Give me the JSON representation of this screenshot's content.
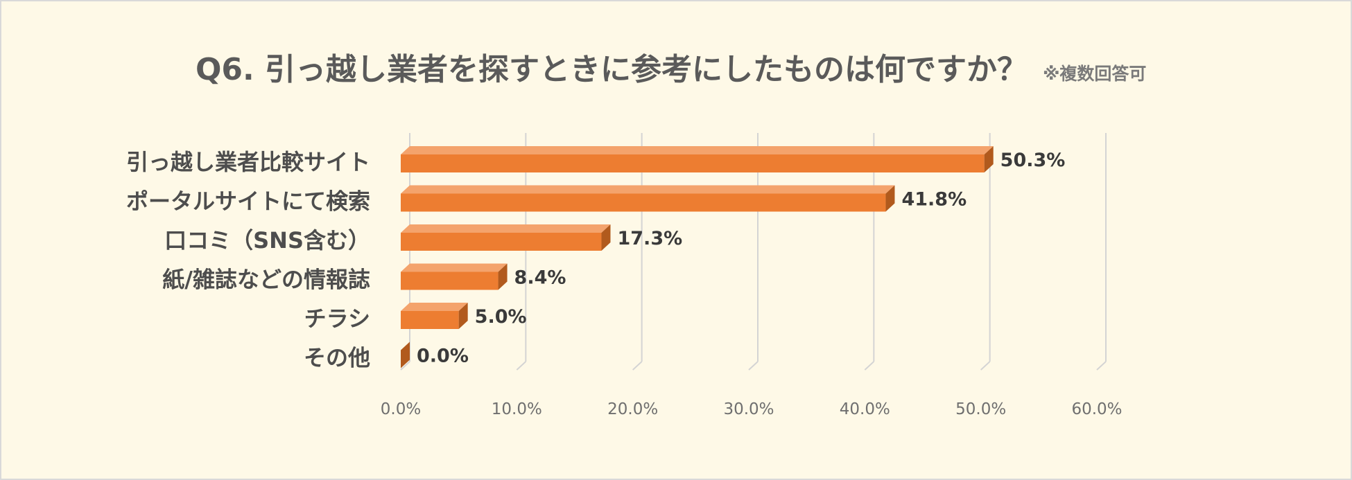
{
  "chart_data": {
    "type": "bar",
    "orientation": "horizontal",
    "title": "Q6. 引っ越し業者を探すときに参考にしたものは何ですか？",
    "subtitle": "※複数回答可",
    "categories": [
      "引っ越し業者比較サイト",
      "ポータルサイトにて検索",
      "口コミ（SNS含む）",
      "紙/雑誌などの情報誌",
      "チラシ",
      "その他"
    ],
    "values": [
      50.3,
      41.8,
      17.3,
      8.4,
      5.0,
      0.0
    ],
    "value_labels": [
      "50.3%",
      "41.8%",
      "17.3%",
      "8.4%",
      "5.0%",
      "0.0%"
    ],
    "xlim": [
      0,
      60
    ],
    "x_ticks": [
      "0.0%",
      "10.0%",
      "20.0%",
      "30.0%",
      "40.0%",
      "50.0%",
      "60.0%"
    ],
    "grid": true,
    "legend": "none",
    "colors": {
      "bar_front": "#ed7d31",
      "bar_top": "#f4a36c",
      "bar_side": "#b15a1d",
      "grid": "#d4d4d4",
      "background": "#fef9e7"
    }
  }
}
